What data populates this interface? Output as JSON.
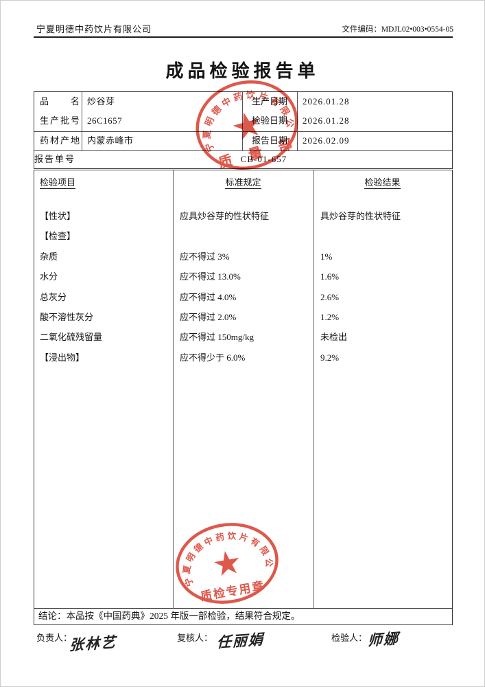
{
  "header": {
    "company": "宁夏明德中药饮片有限公司",
    "doc_code": "文件编码：MDJL02•003•0554-05"
  },
  "title": "成品检验报告单",
  "info": {
    "rows": [
      {
        "label": "品名",
        "value": "炒谷芽",
        "label2": "生产日期",
        "value2": "2026.01.28"
      },
      {
        "label": "生产批号",
        "value": "26C1657",
        "label2": "检验日期",
        "value2": "2026.01.28"
      },
      {
        "label": "药材产地",
        "value": "内蒙赤峰市",
        "label2": "报告日期",
        "value2": "2026.02.09"
      }
    ],
    "report_no_label": "报告单号",
    "report_no": "CB-01-657"
  },
  "results_table": {
    "headers": [
      "检验项目",
      "标准规定",
      "检验结果"
    ],
    "rows": [
      {
        "item": "【性状】",
        "standard": "应具炒谷芽的性状特征",
        "result": "具炒谷芽的性状特征"
      },
      {
        "item": "【检查】",
        "standard": "",
        "result": ""
      },
      {
        "item": "杂质",
        "standard": "应不得过 3%",
        "result": "1%"
      },
      {
        "item": "水分",
        "standard": "应不得过 13.0%",
        "result": "1.6%"
      },
      {
        "item": "总灰分",
        "standard": "应不得过 4.0%",
        "result": "2.6%"
      },
      {
        "item": "酸不溶性灰分",
        "standard": "应不得过 2.0%",
        "result": "1.2%"
      },
      {
        "item": "二氧化硫残留量",
        "standard": "应不得过 150mg/kg",
        "result": "未检出"
      },
      {
        "item": "【浸出物】",
        "standard": "应不得少于 6.0%",
        "result": "9.2%"
      }
    ]
  },
  "conclusion": "结论：本品按《中国药典》2025 年版一部检验，结果符合规定。",
  "signatures": [
    {
      "label": "负责人：",
      "name": "张林艺"
    },
    {
      "label": "复核人：",
      "name": "任丽娟"
    },
    {
      "label": "检验人：",
      "name": "师娜"
    }
  ],
  "stamps": {
    "company_ring_text": "宁夏明德中药饮片有限公司",
    "top_stamp_text": "质 量 部",
    "bottom_stamp_text": "质检专用章",
    "color": "#d93a2b"
  }
}
